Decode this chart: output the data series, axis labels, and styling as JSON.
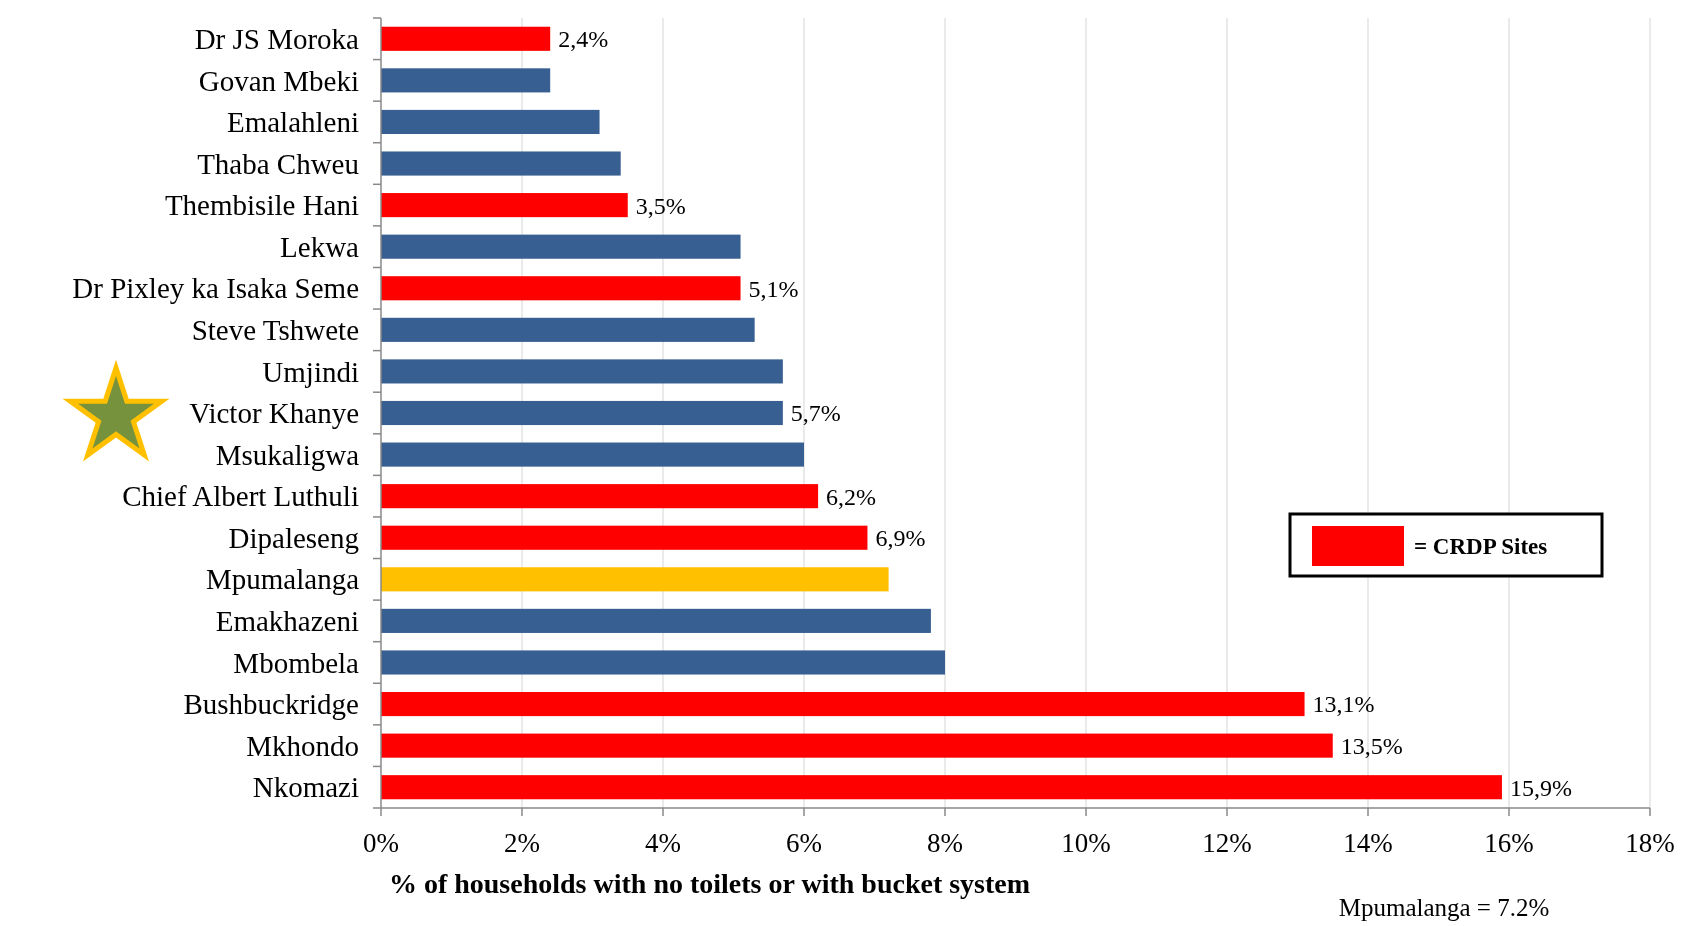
{
  "chart_data": {
    "type": "bar",
    "orientation": "horizontal",
    "xlabel": "% of households with no toilets or with bucket system",
    "categories": [
      "Dr JS Moroka",
      "Govan Mbeki",
      "Emalahleni",
      "Thaba Chweu",
      "Thembisile Hani",
      "Lekwa",
      "Dr Pixley ka Isaka Seme",
      "Steve Tshwete",
      "Umjindi",
      "Victor Khanye",
      "Msukaligwa",
      "Chief Albert Luthuli",
      "Dipaleseng",
      "Mpumalanga",
      "Emakhazeni",
      "Mbombela",
      "Bushbuckridge",
      "Mkhondo",
      "Nkomazi"
    ],
    "series": [
      {
        "name": "= CRDP Sites",
        "color": "#ff0000",
        "values": [
          2.4,
          null,
          null,
          null,
          3.5,
          null,
          5.1,
          null,
          null,
          null,
          null,
          6.2,
          6.9,
          null,
          null,
          null,
          13.1,
          13.5,
          15.9
        ],
        "value_labels": [
          "2,4%",
          null,
          null,
          null,
          "3,5%",
          null,
          "5,1%",
          null,
          null,
          "5,7%",
          null,
          "6,2%",
          "6,9%",
          null,
          null,
          null,
          "13,1%",
          "13,5%",
          "15,9%"
        ]
      },
      {
        "values": [
          null,
          2.4,
          3.1,
          3.4,
          null,
          5.1,
          null,
          5.3,
          5.7,
          5.7,
          6.0,
          null,
          null,
          7.2,
          7.8,
          8.0,
          null,
          null,
          null
        ],
        "colors": [
          null,
          "#375f91",
          "#375f91",
          "#375f91",
          null,
          "#375f91",
          null,
          "#375f91",
          "#375f91",
          "#375f91",
          "#375f91",
          null,
          null,
          "#ffc000",
          "#375f91",
          "#375f91",
          null,
          null,
          null
        ]
      }
    ],
    "xlim": [
      0,
      18
    ],
    "xticks": [
      {
        "value": 0,
        "label": "0%"
      },
      {
        "value": 2,
        "label": "2%"
      },
      {
        "value": 4,
        "label": "4%"
      },
      {
        "value": 6,
        "label": "6%"
      },
      {
        "value": 8,
        "label": "8%"
      },
      {
        "value": 10,
        "label": "10%"
      },
      {
        "value": 12,
        "label": "12%"
      },
      {
        "value": 14,
        "label": "14%"
      },
      {
        "value": 16,
        "label": "16%"
      },
      {
        "value": 18,
        "label": "18%"
      }
    ],
    "grid": "x",
    "legend": "right",
    "annotations": [
      "Mpumalanga = 7.2%"
    ]
  }
}
